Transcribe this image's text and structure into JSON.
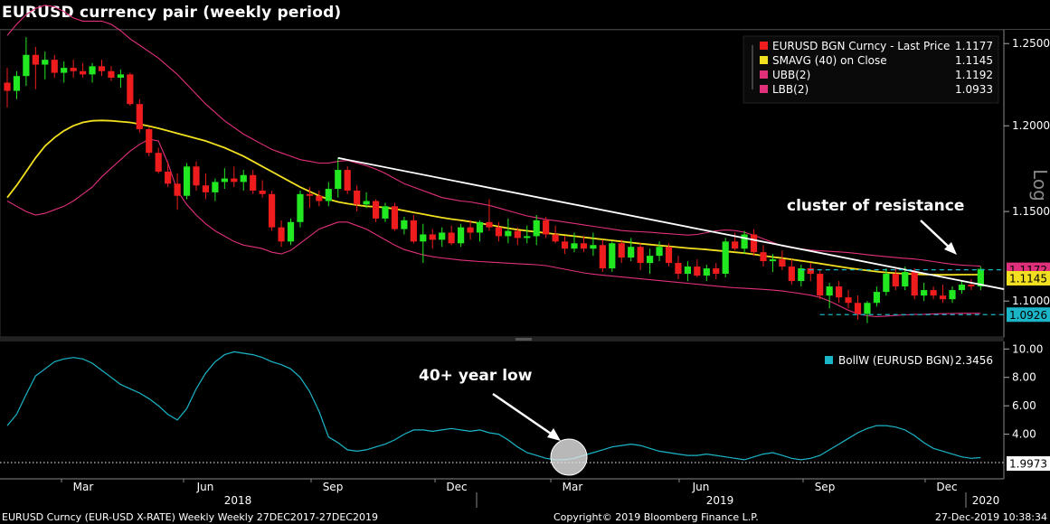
{
  "header": {
    "title": "EURUSD currency pair (weekly period)"
  },
  "colors": {
    "up": "#22e822",
    "down": "#ee1c1c",
    "sma": "#f2e020",
    "bands": "#e0307c",
    "bollw": "#1ab6c8",
    "trend": "#ffffff",
    "background": "#000000"
  },
  "chart_data": [
    {
      "type": "candlestick",
      "title": "EURUSD currency pair (weekly period)",
      "y_scale": "log",
      "y_scale_label": "Log",
      "ylim": [
        1.082,
        1.258
      ],
      "y_ticks": [
        1.1,
        1.15,
        1.2,
        1.25
      ],
      "y_tick_labels": [
        "1.1000",
        "1.1500",
        "1.2000",
        "1.2500"
      ],
      "x_tick_labels": [
        "Mar",
        "Jun",
        "Sep",
        "Dec",
        "Mar",
        "Jun",
        "Sep",
        "Dec"
      ],
      "x_year_labels": [
        "2018",
        "2019",
        "2020"
      ],
      "ohlc": [
        [
          1.226,
          1.235,
          1.211,
          1.221
        ],
        [
          1.221,
          1.233,
          1.216,
          1.23
        ],
        [
          1.23,
          1.254,
          1.224,
          1.243
        ],
        [
          1.243,
          1.248,
          1.222,
          1.237
        ],
        [
          1.237,
          1.245,
          1.228,
          1.24
        ],
        [
          1.24,
          1.243,
          1.229,
          1.232
        ],
        [
          1.232,
          1.239,
          1.226,
          1.235
        ],
        [
          1.235,
          1.24,
          1.229,
          1.233
        ],
        [
          1.233,
          1.238,
          1.229,
          1.231
        ],
        [
          1.231,
          1.238,
          1.226,
          1.236
        ],
        [
          1.236,
          1.24,
          1.23,
          1.233
        ],
        [
          1.233,
          1.236,
          1.227,
          1.229
        ],
        [
          1.229,
          1.234,
          1.223,
          1.231
        ],
        [
          1.231,
          1.232,
          1.212,
          1.213
        ],
        [
          1.213,
          1.216,
          1.196,
          1.198
        ],
        [
          1.198,
          1.199,
          1.182,
          1.184
        ],
        [
          1.184,
          1.187,
          1.172,
          1.173
        ],
        [
          1.173,
          1.179,
          1.164,
          1.166
        ],
        [
          1.166,
          1.172,
          1.151,
          1.159
        ],
        [
          1.159,
          1.178,
          1.157,
          1.176
        ],
        [
          1.176,
          1.179,
          1.162,
          1.165
        ],
        [
          1.165,
          1.172,
          1.157,
          1.161
        ],
        [
          1.161,
          1.169,
          1.156,
          1.167
        ],
        [
          1.167,
          1.175,
          1.163,
          1.169
        ],
        [
          1.169,
          1.176,
          1.164,
          1.167
        ],
        [
          1.167,
          1.174,
          1.162,
          1.171
        ],
        [
          1.171,
          1.174,
          1.16,
          1.162
        ],
        [
          1.162,
          1.168,
          1.158,
          1.16
        ],
        [
          1.16,
          1.162,
          1.139,
          1.141
        ],
        [
          1.141,
          1.145,
          1.13,
          1.133
        ],
        [
          1.133,
          1.146,
          1.131,
          1.144
        ],
        [
          1.144,
          1.162,
          1.141,
          1.16
        ],
        [
          1.16,
          1.164,
          1.152,
          1.159
        ],
        [
          1.159,
          1.162,
          1.153,
          1.156
        ],
        [
          1.156,
          1.167,
          1.153,
          1.163
        ],
        [
          1.163,
          1.181,
          1.158,
          1.174
        ],
        [
          1.174,
          1.176,
          1.16,
          1.162
        ],
        [
          1.162,
          1.165,
          1.15,
          1.154
        ],
        [
          1.154,
          1.161,
          1.152,
          1.156
        ],
        [
          1.156,
          1.157,
          1.144,
          1.146
        ],
        [
          1.146,
          1.155,
          1.144,
          1.153
        ],
        [
          1.153,
          1.155,
          1.139,
          1.14
        ],
        [
          1.14,
          1.147,
          1.137,
          1.145
        ],
        [
          1.145,
          1.148,
          1.132,
          1.133
        ],
        [
          1.133,
          1.143,
          1.121,
          1.137
        ],
        [
          1.137,
          1.14,
          1.129,
          1.134
        ],
        [
          1.134,
          1.141,
          1.13,
          1.138
        ],
        [
          1.138,
          1.142,
          1.131,
          1.132
        ],
        [
          1.132,
          1.143,
          1.13,
          1.141
        ],
        [
          1.141,
          1.145,
          1.134,
          1.138
        ],
        [
          1.138,
          1.145,
          1.133,
          1.144
        ],
        [
          1.144,
          1.157,
          1.139,
          1.141
        ],
        [
          1.141,
          1.144,
          1.133,
          1.136
        ],
        [
          1.136,
          1.146,
          1.132,
          1.139
        ],
        [
          1.139,
          1.141,
          1.131,
          1.135
        ],
        [
          1.135,
          1.142,
          1.132,
          1.136
        ],
        [
          1.136,
          1.148,
          1.131,
          1.145
        ],
        [
          1.145,
          1.147,
          1.135,
          1.137
        ],
        [
          1.137,
          1.142,
          1.132,
          1.133
        ],
        [
          1.133,
          1.136,
          1.126,
          1.129
        ],
        [
          1.129,
          1.138,
          1.127,
          1.132
        ],
        [
          1.132,
          1.136,
          1.127,
          1.129
        ],
        [
          1.129,
          1.138,
          1.125,
          1.131
        ],
        [
          1.131,
          1.134,
          1.116,
          1.118
        ],
        [
          1.118,
          1.133,
          1.116,
          1.132
        ],
        [
          1.132,
          1.134,
          1.121,
          1.124
        ],
        [
          1.124,
          1.135,
          1.122,
          1.13
        ],
        [
          1.13,
          1.132,
          1.117,
          1.121
        ],
        [
          1.121,
          1.129,
          1.115,
          1.125
        ],
        [
          1.125,
          1.133,
          1.122,
          1.13
        ],
        [
          1.13,
          1.132,
          1.119,
          1.121
        ],
        [
          1.121,
          1.125,
          1.112,
          1.115
        ],
        [
          1.115,
          1.122,
          1.111,
          1.119
        ],
        [
          1.119,
          1.123,
          1.113,
          1.114
        ],
        [
          1.114,
          1.12,
          1.111,
          1.118
        ],
        [
          1.118,
          1.121,
          1.112,
          1.115
        ],
        [
          1.115,
          1.135,
          1.113,
          1.133
        ],
        [
          1.133,
          1.138,
          1.128,
          1.129
        ],
        [
          1.129,
          1.139,
          1.126,
          1.137
        ],
        [
          1.137,
          1.14,
          1.125,
          1.127
        ],
        [
          1.127,
          1.131,
          1.119,
          1.122
        ],
        [
          1.122,
          1.126,
          1.116,
          1.123
        ],
        [
          1.123,
          1.128,
          1.117,
          1.119
        ],
        [
          1.119,
          1.123,
          1.109,
          1.111
        ],
        [
          1.111,
          1.12,
          1.108,
          1.118
        ],
        [
          1.118,
          1.121,
          1.111,
          1.115
        ],
        [
          1.115,
          1.117,
          1.101,
          1.103
        ],
        [
          1.103,
          1.11,
          1.096,
          1.108
        ],
        [
          1.108,
          1.111,
          1.099,
          1.102
        ],
        [
          1.102,
          1.106,
          1.096,
          1.099
        ],
        [
          1.099,
          1.103,
          1.09,
          1.093
        ],
        [
          1.093,
          1.1,
          1.088,
          1.099
        ],
        [
          1.099,
          1.108,
          1.097,
          1.105
        ],
        [
          1.105,
          1.118,
          1.103,
          1.115
        ],
        [
          1.115,
          1.118,
          1.106,
          1.108
        ],
        [
          1.108,
          1.119,
          1.106,
          1.116
        ],
        [
          1.116,
          1.118,
          1.101,
          1.103
        ],
        [
          1.103,
          1.11,
          1.1,
          1.106
        ],
        [
          1.106,
          1.108,
          1.101,
          1.103
        ],
        [
          1.103,
          1.109,
          1.099,
          1.101
        ],
        [
          1.101,
          1.108,
          1.099,
          1.106
        ],
        [
          1.106,
          1.111,
          1.104,
          1.109
        ],
        [
          1.109,
          1.112,
          1.106,
          1.108
        ],
        [
          1.108,
          1.119,
          1.106,
          1.1177
        ]
      ],
      "sma40": [
        1.158,
        1.165,
        1.173,
        1.181,
        1.188,
        1.193,
        1.197,
        1.2,
        1.202,
        1.203,
        1.2032,
        1.203,
        1.2025,
        1.202,
        1.201,
        1.1998,
        1.1985,
        1.197,
        1.1955,
        1.194,
        1.1925,
        1.191,
        1.189,
        1.187,
        1.1845,
        1.182,
        1.179,
        1.176,
        1.173,
        1.17,
        1.167,
        1.164,
        1.1615,
        1.159,
        1.157,
        1.1555,
        1.1545,
        1.1537,
        1.153,
        1.1527,
        1.1523,
        1.1515,
        1.1505,
        1.1495,
        1.1485,
        1.1475,
        1.1465,
        1.1457,
        1.145,
        1.1442,
        1.1433,
        1.1425,
        1.1415,
        1.1405,
        1.1397,
        1.139,
        1.1384,
        1.1378,
        1.1372,
        1.1366,
        1.136,
        1.1354,
        1.1348,
        1.1342,
        1.1336,
        1.133,
        1.1324,
        1.1318,
        1.1313,
        1.1308,
        1.1303,
        1.1298,
        1.1293,
        1.1289,
        1.1285,
        1.128,
        1.1275,
        1.127,
        1.1265,
        1.1258,
        1.125,
        1.1243,
        1.1237,
        1.123,
        1.1222,
        1.1215,
        1.1207,
        1.1198,
        1.119,
        1.1182,
        1.1175,
        1.1168,
        1.1162,
        1.1157,
        1.1153,
        1.115,
        1.1148,
        1.1146,
        1.1145,
        1.1144,
        1.1144,
        1.1145,
        1.1145,
        1.1145
      ],
      "ubb2": [
        1.255,
        1.262,
        1.268,
        1.272,
        1.274,
        1.273,
        1.27,
        1.266,
        1.264,
        1.264,
        1.264,
        1.262,
        1.258,
        1.253,
        1.249,
        1.245,
        1.241,
        1.236,
        1.231,
        1.225,
        1.219,
        1.213,
        1.208,
        1.203,
        1.199,
        1.195,
        1.192,
        1.189,
        1.186,
        1.184,
        1.182,
        1.18,
        1.179,
        1.178,
        1.178,
        1.179,
        1.1795,
        1.178,
        1.1765,
        1.1745,
        1.172,
        1.169,
        1.166,
        1.164,
        1.162,
        1.16,
        1.158,
        1.157,
        1.156,
        1.1555,
        1.1545,
        1.1535,
        1.152,
        1.1505,
        1.149,
        1.1475,
        1.1465,
        1.1455,
        1.1448,
        1.144,
        1.1432,
        1.1424,
        1.1416,
        1.1408,
        1.14,
        1.1392,
        1.1388,
        1.1385,
        1.1382,
        1.1378,
        1.1374,
        1.137,
        1.1366,
        1.137,
        1.138,
        1.139,
        1.1395,
        1.1392,
        1.1382,
        1.1365,
        1.1345,
        1.1325,
        1.1305,
        1.1295,
        1.1288,
        1.1282,
        1.1278,
        1.1275,
        1.1272,
        1.1268,
        1.1262,
        1.1256,
        1.125,
        1.1245,
        1.124,
        1.1236,
        1.1232,
        1.1226,
        1.1218,
        1.121,
        1.1203,
        1.1198,
        1.1195,
        1.1192
      ],
      "lbb2": [
        1.156,
        1.153,
        1.15,
        1.148,
        1.149,
        1.151,
        1.153,
        1.156,
        1.16,
        1.164,
        1.17,
        1.175,
        1.18,
        1.185,
        1.189,
        1.192,
        1.191,
        1.178,
        1.162,
        1.154,
        1.148,
        1.143,
        1.139,
        1.136,
        1.133,
        1.131,
        1.13,
        1.129,
        1.127,
        1.126,
        1.128,
        1.132,
        1.136,
        1.14,
        1.142,
        1.144,
        1.144,
        1.142,
        1.14,
        1.137,
        1.134,
        1.131,
        1.1285,
        1.127,
        1.1255,
        1.1245,
        1.1238,
        1.1232,
        1.1226,
        1.1222,
        1.1218,
        1.1215,
        1.1212,
        1.1209,
        1.1206,
        1.1203,
        1.12,
        1.1195,
        1.1185,
        1.1175,
        1.1165,
        1.1155,
        1.1148,
        1.1142,
        1.1137,
        1.1132,
        1.1127,
        1.1122,
        1.1117,
        1.1112,
        1.1107,
        1.1102,
        1.1097,
        1.1092,
        1.1087,
        1.1082,
        1.1077,
        1.1073,
        1.107,
        1.1067,
        1.1064,
        1.106,
        1.1055,
        1.1048,
        1.104,
        1.1032,
        1.102,
        1.1,
        1.0975,
        1.095,
        1.093,
        1.092,
        1.0915,
        1.0918,
        1.0922,
        1.0925,
        1.0927,
        1.0928,
        1.093,
        1.0931,
        1.0932,
        1.0933,
        1.0933,
        1.0933
      ],
      "trendline": {
        "from": {
          "week": 35,
          "value": 1.181
        },
        "to": {
          "week": 104,
          "value": 1.108
        }
      },
      "hlines": [
        {
          "value": 1.1172,
          "style": "dashed"
        },
        {
          "value": 1.0926,
          "style": "dashed"
        }
      ],
      "price_tags": [
        {
          "label": "1.1172",
          "value": 1.1172,
          "color": "#e0307c"
        },
        {
          "label": "1.1145",
          "value": 1.1145,
          "color": "#f2e020"
        },
        {
          "label": "1.0926",
          "value": 1.0926,
          "color": "#1ab6c8"
        }
      ],
      "legend_position": "top-right",
      "legend": [
        {
          "name": "EURUSD BGN Curncy - Last Price",
          "value": "1.1177",
          "color": "#ee1c1c"
        },
        {
          "name": "SMAVG (40)  on Close",
          "value": "1.1145",
          "color": "#f2e020"
        },
        {
          "name": "UBB(2)",
          "value": "1.1192",
          "color": "#e0307c"
        },
        {
          "name": "LBB(2)",
          "value": "1.0933",
          "color": "#e0307c"
        }
      ],
      "annotation": "cluster of resistance"
    },
    {
      "type": "line",
      "ylim": [
        1.3,
        10.4
      ],
      "y_ticks": [
        4,
        6,
        8,
        10
      ],
      "y_tick_labels": [
        "4.00",
        "6.00",
        "8.00",
        "10.00"
      ],
      "series": [
        {
          "name": "BollW (EURUSD BGN)",
          "values": [
            4.6,
            5.4,
            6.8,
            8.1,
            8.6,
            9.1,
            9.3,
            9.4,
            9.3,
            9.0,
            8.5,
            8.0,
            7.5,
            7.2,
            6.9,
            6.5,
            6.0,
            5.4,
            5.0,
            5.8,
            7.2,
            8.3,
            9.1,
            9.6,
            9.8,
            9.7,
            9.6,
            9.4,
            9.1,
            8.9,
            8.6,
            8.0,
            7.0,
            5.6,
            3.8,
            3.4,
            2.9,
            2.8,
            2.9,
            3.1,
            3.3,
            3.6,
            4.0,
            4.3,
            4.3,
            4.2,
            4.3,
            4.4,
            4.3,
            4.2,
            4.3,
            4.1,
            4.0,
            3.6,
            3.1,
            2.7,
            2.5,
            2.3,
            2.2,
            2.2,
            2.3,
            2.5,
            2.7,
            2.9,
            3.1,
            3.2,
            3.3,
            3.2,
            3.0,
            2.8,
            2.7,
            2.6,
            2.5,
            2.5,
            2.6,
            2.5,
            2.4,
            2.3,
            2.2,
            2.4,
            2.6,
            2.7,
            2.5,
            2.3,
            2.2,
            2.3,
            2.5,
            2.9,
            3.3,
            3.7,
            4.1,
            4.4,
            4.6,
            4.6,
            4.5,
            4.3,
            3.9,
            3.4,
            3.0,
            2.8,
            2.6,
            2.4,
            2.3,
            2.35
          ]
        }
      ],
      "hlines": [
        {
          "value": 1.9973,
          "style": "dotted"
        }
      ],
      "price_tags": [
        {
          "label": "1.9973",
          "value": 1.9973
        }
      ],
      "legend": [
        {
          "name": "BollW (EURUSD BGN)",
          "value": "2.3456",
          "color": "#1ab6c8"
        }
      ],
      "annotation": "40+ year low"
    }
  ],
  "footer": {
    "left": "EURUSD Curncy (EUR-USD X-RATE) Weekly  Weekly 27DEC2017-27DEC2019",
    "center": "Copyright© 2019 Bloomberg Finance L.P.",
    "right": "27-Dec-2019 10:38:34"
  }
}
